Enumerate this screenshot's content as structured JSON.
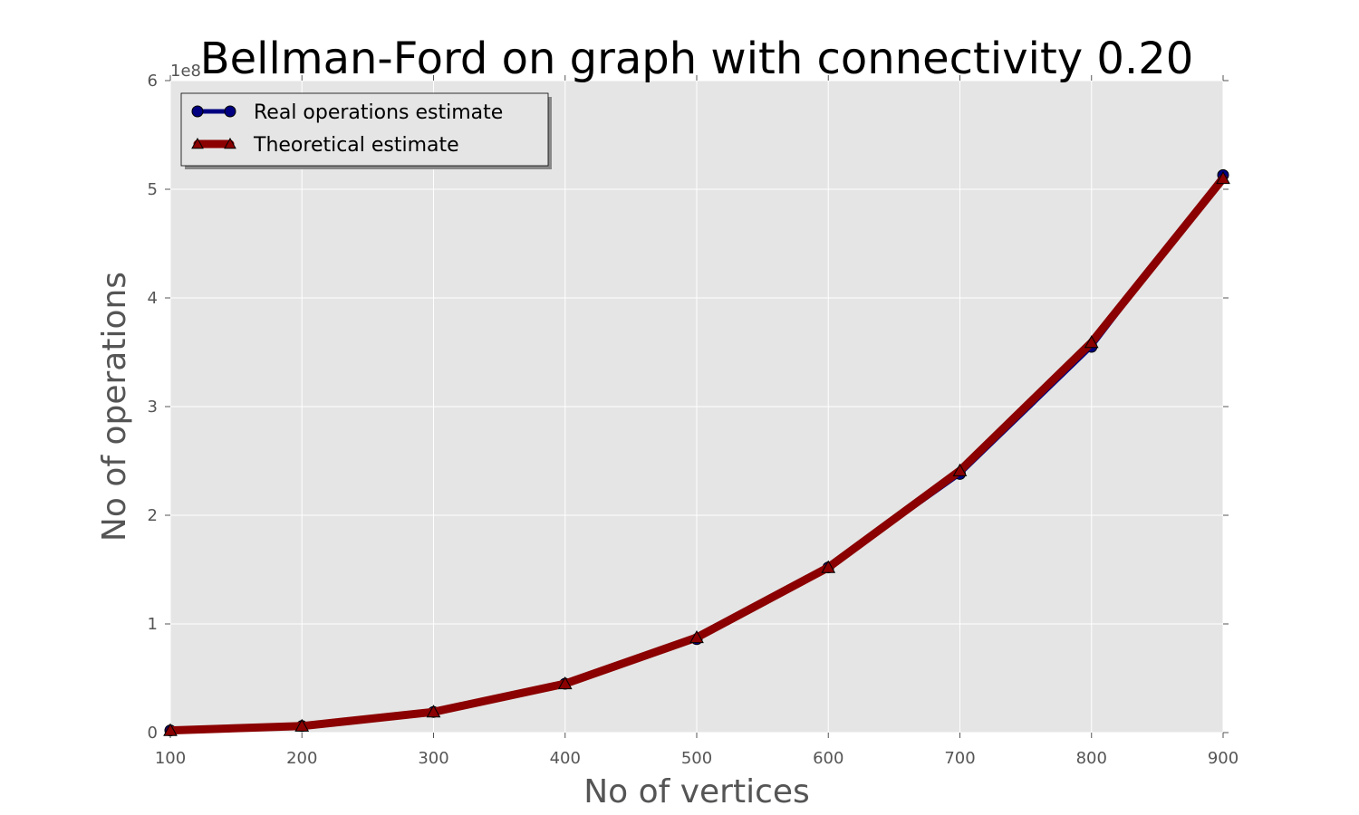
{
  "chart_data": {
    "type": "line",
    "title": "Bellman-Ford on graph with connectivity 0.20",
    "xlabel": "No of vertices",
    "ylabel": "No of operations",
    "y_offset_label": "1e8",
    "x": [
      100,
      200,
      300,
      400,
      500,
      600,
      700,
      800,
      900
    ],
    "xlim": [
      100,
      900
    ],
    "ylim": [
      0,
      6
    ],
    "x_ticks": [
      "100",
      "200",
      "300",
      "400",
      "500",
      "600",
      "700",
      "800",
      "900"
    ],
    "y_ticks": [
      "0",
      "1",
      "2",
      "3",
      "4",
      "5",
      "6"
    ],
    "grid": true,
    "legend_position": "top-left",
    "background_color": "#e5e5e5",
    "series": [
      {
        "name": "Real operations estimate",
        "color": "#000080",
        "marker": "circle",
        "values": [
          0.02,
          0.06,
          0.19,
          0.45,
          0.86,
          1.52,
          2.38,
          3.55,
          5.13
        ]
      },
      {
        "name": "Theoretical estimate",
        "color": "#8b0000",
        "marker": "triangle",
        "values": [
          0.02,
          0.06,
          0.19,
          0.45,
          0.875,
          1.52,
          2.41,
          3.59,
          5.1
        ]
      }
    ]
  }
}
